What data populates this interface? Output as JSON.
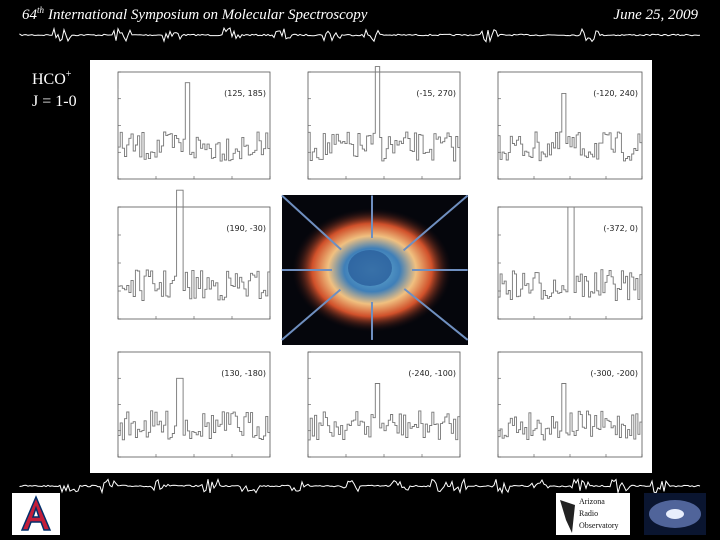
{
  "header": {
    "number": "64",
    "superscript": "th",
    "title": "International Symposium on Molecular Spectroscopy",
    "date": "June 25, 2009"
  },
  "label": {
    "molecule": "HCO",
    "charge": "+",
    "transition": "J = 1-0"
  },
  "panels": [
    {
      "position": "(125, 185)"
    },
    {
      "position": "(-15, 270)"
    },
    {
      "position": "(-120, 240)"
    },
    {
      "position": "(190, -30)"
    },
    {
      "position": "(-372, 0)"
    },
    {
      "position": "(130, -180)"
    },
    {
      "position": "(-240, -100)"
    },
    {
      "position": "(-300, -200)"
    }
  ],
  "logo": {
    "lines": [
      "Arizona",
      "Radio",
      "Observatory"
    ]
  }
}
